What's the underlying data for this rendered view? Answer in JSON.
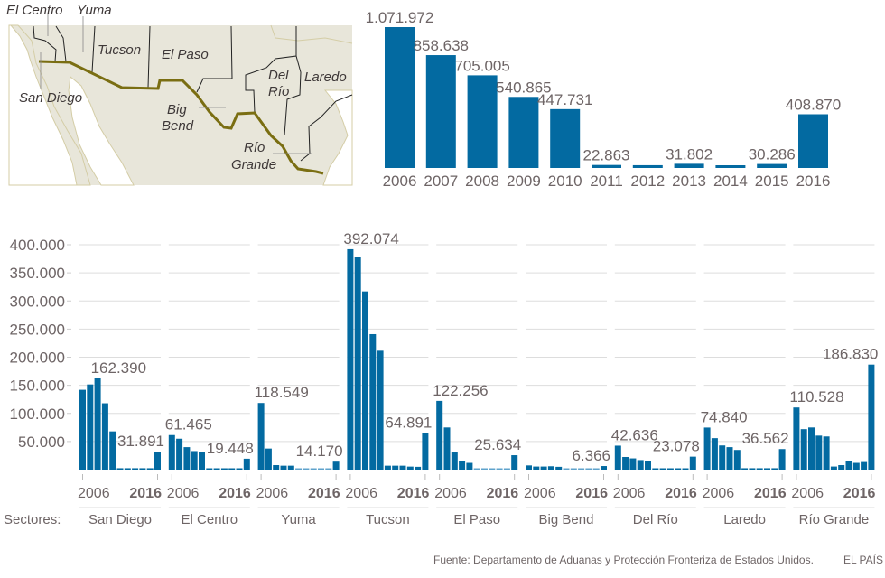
{
  "colors": {
    "bar": "#036aa1",
    "bar_light": "#5fa3cc",
    "text": "#6e6566",
    "grid": "#dddddd",
    "border": "#7a6e12",
    "land": "#e8e6da",
    "coast": "#d4cda6"
  },
  "map": {
    "labels": [
      "El Centro",
      "Yuma",
      "Tucson",
      "El Paso",
      "San Diego",
      "Big Bend",
      "Del Río",
      "Laredo",
      "Río Grande"
    ]
  },
  "chart_data": [
    {
      "type": "bar",
      "categories": [
        "2006",
        "2007",
        "2008",
        "2009",
        "2010",
        "2011",
        "2012",
        "2013",
        "2014",
        "2015",
        "2016"
      ],
      "values": [
        1071972,
        858638,
        705005,
        540865,
        447731,
        22863,
        21000,
        31802,
        20000,
        30286,
        408870
      ],
      "data_labels": [
        "1.071.972",
        "858.638",
        "705.005",
        "540.865",
        "447.731",
        "22.863",
        "",
        "31.802",
        "",
        "30.286",
        "408.870"
      ],
      "grid": false
    },
    {
      "type": "bar",
      "title": "",
      "ylim": [
        0,
        400000
      ],
      "yticks": [
        "50.000",
        "100.000",
        "150.000",
        "200.000",
        "250.000",
        "300.000",
        "350.000",
        "400.000"
      ],
      "ytick_values": [
        50000,
        100000,
        150000,
        200000,
        250000,
        300000,
        350000,
        400000
      ],
      "grid": true,
      "years": [
        "2006",
        "2007",
        "2008",
        "2009",
        "2010",
        "2011",
        "2012",
        "2013",
        "2014",
        "2015",
        "2016"
      ],
      "xtick_first": "2006",
      "xtick_last": "2016",
      "sectors_label": "Sectores:",
      "series": [
        {
          "name": "San Diego",
          "values": [
            142000,
            151500,
            162390,
            118000,
            68000,
            2500,
            2500,
            2500,
            2500,
            2500,
            31891
          ],
          "labels": [
            {
              "i": 2,
              "text": "162.390"
            },
            {
              "i": 10,
              "text": "31.891"
            }
          ]
        },
        {
          "name": "El Centro",
          "values": [
            61465,
            55000,
            40000,
            33000,
            32000,
            1500,
            1500,
            1500,
            1500,
            1500,
            19448
          ],
          "labels": [
            {
              "i": 0,
              "text": "61.465"
            },
            {
              "i": 10,
              "text": "19.448"
            }
          ]
        },
        {
          "name": "Yuma",
          "values": [
            118549,
            37500,
            8000,
            7000,
            7000,
            600,
            600,
            600,
            600,
            600,
            14170
          ],
          "labels": [
            {
              "i": 0,
              "text": "118.549"
            },
            {
              "i": 10,
              "text": "14.170"
            }
          ]
        },
        {
          "name": "Tucson",
          "values": [
            392074,
            377500,
            317000,
            241000,
            211500,
            7000,
            7000,
            7000,
            5400,
            5000,
            64891
          ],
          "labels": [
            {
              "i": 0,
              "text": "392.074"
            },
            {
              "i": 10,
              "text": "64.891"
            }
          ]
        },
        {
          "name": "El Paso",
          "values": [
            122256,
            75000,
            30500,
            15000,
            12000,
            1000,
            1000,
            1000,
            1000,
            1000,
            25634
          ],
          "labels": [
            {
              "i": 0,
              "text": "122.256"
            },
            {
              "i": 10,
              "text": "25.634"
            }
          ]
        },
        {
          "name": "Big Bend",
          "values": [
            7500,
            5500,
            5500,
            6000,
            5000,
            300,
            300,
            300,
            300,
            300,
            6366
          ],
          "labels": [
            {
              "i": 10,
              "text": "6.366"
            }
          ]
        },
        {
          "name": "Del Río",
          "values": [
            42636,
            22500,
            20000,
            17000,
            14500,
            1500,
            1500,
            1500,
            1500,
            1500,
            23078
          ],
          "labels": [
            {
              "i": 0,
              "text": "42.636"
            },
            {
              "i": 10,
              "text": "23.078"
            }
          ]
        },
        {
          "name": "Laredo",
          "values": [
            74840,
            56000,
            43000,
            40000,
            35000,
            2500,
            2500,
            2500,
            2500,
            2500,
            36562
          ],
          "labels": [
            {
              "i": 0,
              "text": "74.840"
            },
            {
              "i": 10,
              "text": "36.562"
            }
          ]
        },
        {
          "name": "Río Grande",
          "values": [
            110528,
            72000,
            75000,
            60500,
            59000,
            5500,
            8000,
            14500,
            12000,
            13500,
            186830
          ],
          "labels": [
            {
              "i": 0,
              "text": "110.528"
            },
            {
              "i": 10,
              "text": "186.830"
            }
          ]
        }
      ]
    }
  ],
  "footer": {
    "source": "Fuente: Departamento de Aduanas y Protección Fronteriza de Estados Unidos.",
    "brand": "EL PAÍS"
  }
}
